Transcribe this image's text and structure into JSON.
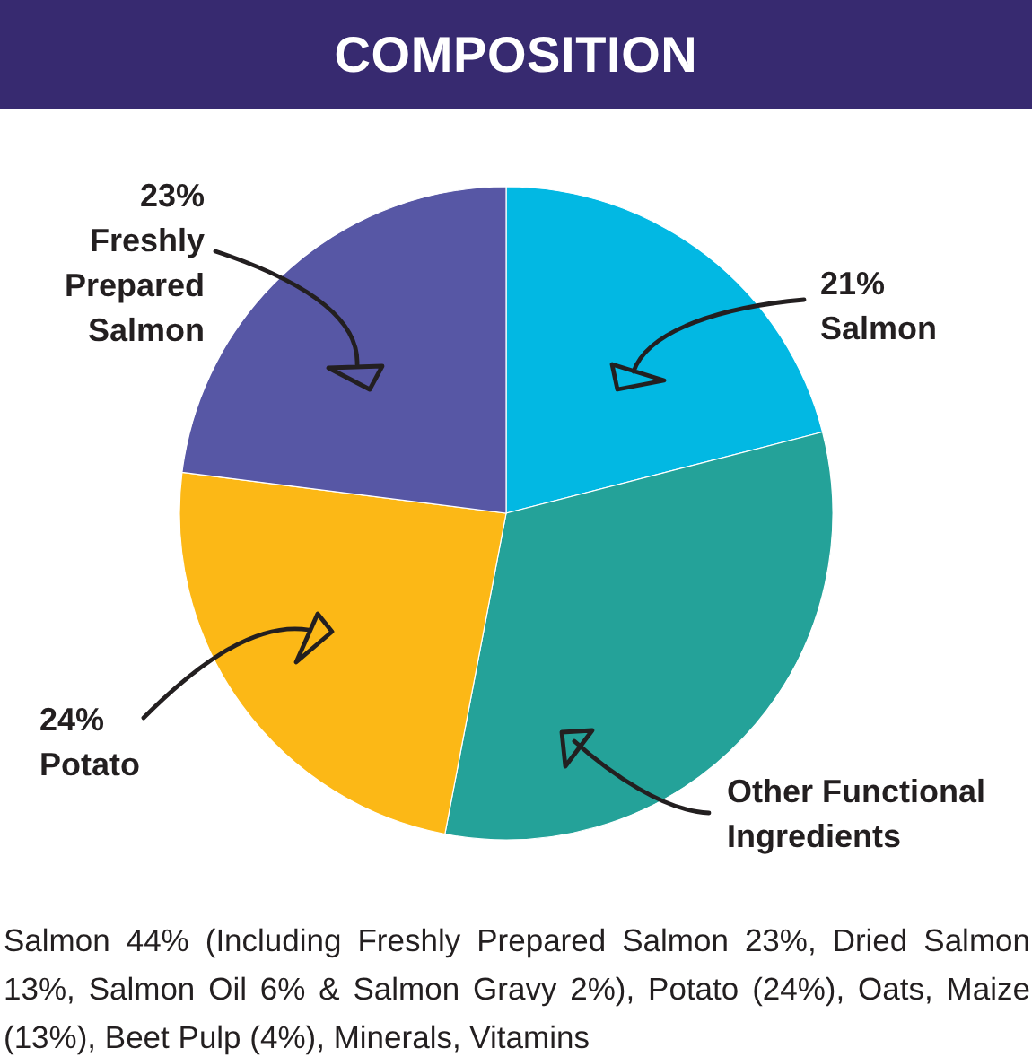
{
  "chart_data": {
    "type": "pie",
    "title": "COMPOSITION",
    "categories": [
      "Salmon",
      "Other Functional Ingredients",
      "Potato",
      "Freshly Prepared Salmon"
    ],
    "values": [
      21,
      32,
      24,
      23
    ],
    "colors": [
      "#02b8e3",
      "#24a299",
      "#fcb816",
      "#5757a5"
    ],
    "value_labels": [
      "21%",
      null,
      "24%",
      "23%"
    ],
    "annotations": [
      "Salmon 44% (Including Freshly Prepared Salmon 23%, Dried Salmon 13%, Salmon Oil 6% & Salmon Gravy 2%), Potato (24%), Oats, Maize (13%), Beet Pulp (4%), Minerals, Vitamins"
    ]
  }
}
